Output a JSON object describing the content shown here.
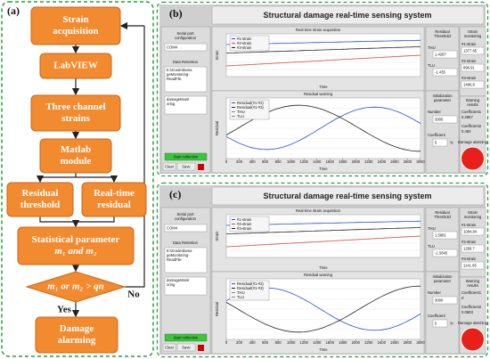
{
  "flowchart": {
    "label": "(a)",
    "nodes": [
      [
        "Strain",
        "acquisition"
      ],
      [
        "LabVIEW"
      ],
      [
        "Three channel",
        "strains"
      ],
      [
        "Matlab",
        "module"
      ],
      [
        "Residual",
        "threshold"
      ],
      [
        "Real-time",
        "residual"
      ],
      [
        "Statistical parameter",
        "m₁ and m₂"
      ],
      [
        "m₁ or m₂ > qn"
      ],
      [
        "Damage",
        "alarming"
      ]
    ],
    "yes": "Yes",
    "no": "No"
  },
  "panels": [
    {
      "label": "(b)",
      "title": "Structural damage real-time sensing system",
      "serial": {
        "label": "Serial port configuration",
        "port": "COM4"
      },
      "retention": {
        "label": "Data Retention",
        "path": "E:\\Zcode\\damageMonitoring-ReadFile",
        "file": "damageMonitoring"
      },
      "buttons": [
        "Start collection",
        "Clear",
        "Save"
      ],
      "strain_chart": {
        "title": "Real-time strain acquisition",
        "legend": [
          "#1-strain",
          "#2-strain",
          "#3-strain"
        ],
        "xlabel": "Time",
        "ylabel": "Strain"
      },
      "residual_chart": {
        "title": "Residual warning",
        "legend": [
          "Residual(#1-#2)",
          "Residual(#1-#3)",
          "THU",
          "TLU"
        ],
        "xlabel": "Time",
        "ylabel": "Residual",
        "xticks": [
          0,
          200,
          400,
          600,
          800,
          1000,
          1200,
          1400,
          1600,
          1800,
          2000,
          2200,
          2400,
          2600,
          2800,
          3000
        ]
      },
      "threshold": {
        "label": "Residual Threshold",
        "thu_label": "THU",
        "thu": 1.4287,
        "tlu_label": "TLU",
        "tlu": -1.435
      },
      "init": {
        "label": "Initialization parameter",
        "number_label": "Number",
        "number": 3000,
        "coef_label": "Coefficient",
        "coef": 5,
        "unit": "%"
      },
      "monitoring": {
        "label": "Strain monitoring",
        "items": [
          {
            "name": "#1-strain",
            "value": 1377.65
          },
          {
            "name": "#2-strain",
            "value": 896.91
          },
          {
            "name": "#3-strain",
            "value": 1496.8
          }
        ]
      },
      "warning": {
        "label": "Warning results",
        "items": [
          {
            "name": "Coefficient1",
            "value": 0.2857
          },
          {
            "name": "Coefficient2",
            "value": 0.483
          }
        ]
      },
      "alarm": "Damage alarming"
    },
    {
      "label": "(c)",
      "title": "Structural damage real-time sensing system",
      "serial": {
        "label": "Serial port configuration",
        "port": "COM4"
      },
      "retention": {
        "label": "Data Retention",
        "path": "E:\\Zcode\\damageMonitoring-ReadFile",
        "file": "damageMonitoring"
      },
      "buttons": [
        "Start collection",
        "Clear",
        "Save"
      ],
      "strain_chart": {
        "title": "Real-time strain acquisition",
        "legend": [
          "#1-strain",
          "#2-strain",
          "#3-strain"
        ],
        "xlabel": "Time",
        "ylabel": "Strain"
      },
      "residual_chart": {
        "title": "Residual warning",
        "legend": [
          "Residual(#1-#2)",
          "Residual(#1-#3)",
          "THU",
          "TLU"
        ],
        "xlabel": "Time",
        "ylabel": "Residual",
        "xticks": [
          0,
          200,
          400,
          600,
          800,
          1000,
          1200,
          1400,
          1600,
          1800,
          2000,
          2200,
          2400,
          2600,
          2800,
          3000
        ]
      },
      "threshold": {
        "label": "Residual Threshold",
        "thu_label": "THU",
        "thu": 1.5881,
        "tlu_label": "TLU",
        "tlu": -1.5845
      },
      "init": {
        "label": "Initialization parameter",
        "number_label": "Number",
        "number": 3000,
        "coef_label": "Coefficient",
        "coef": 5,
        "unit": "%"
      },
      "monitoring": {
        "label": "Strain monitoring",
        "items": [
          {
            "name": "#1-strain",
            "value": 1084.84
          },
          {
            "name": "#2-strain",
            "value": 1289.7
          },
          {
            "name": "#3-strain",
            "value": 1141.65
          }
        ]
      },
      "warning": {
        "label": "Warning results",
        "items": [
          {
            "name": "Coefficient1",
            "value": 0
          },
          {
            "name": "Coefficient2",
            "value": 0.0803
          }
        ]
      },
      "alarm": "Damage alarming"
    }
  ]
}
